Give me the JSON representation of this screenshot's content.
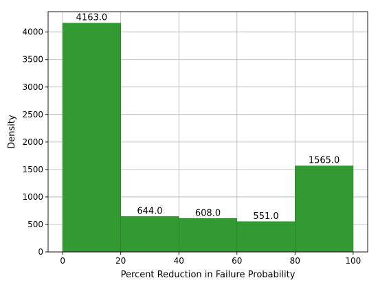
{
  "chart_data": {
    "type": "bar",
    "title": "",
    "xlabel": "Percent Reduction in Failure Probability",
    "ylabel": "Density",
    "bins": [
      {
        "x0": 0,
        "x1": 20,
        "value": 4163.0,
        "label": "4163.0"
      },
      {
        "x0": 20,
        "x1": 40,
        "value": 644.0,
        "label": "644.0"
      },
      {
        "x0": 40,
        "x1": 60,
        "value": 608.0,
        "label": "608.0"
      },
      {
        "x0": 60,
        "x1": 80,
        "value": 551.0,
        "label": "551.0"
      },
      {
        "x0": 80,
        "x1": 100,
        "value": 1565.0,
        "label": "1565.0"
      }
    ],
    "xlim": [
      -5,
      105
    ],
    "ylim": [
      0,
      4371
    ],
    "xticks": [
      0,
      20,
      40,
      60,
      80,
      100
    ],
    "yticks": [
      0,
      500,
      1000,
      1500,
      2000,
      2500,
      3000,
      3500,
      4000
    ],
    "bar_color": "#339933",
    "edge_color": "#2a7a2a",
    "grid": true,
    "legend": "none"
  }
}
